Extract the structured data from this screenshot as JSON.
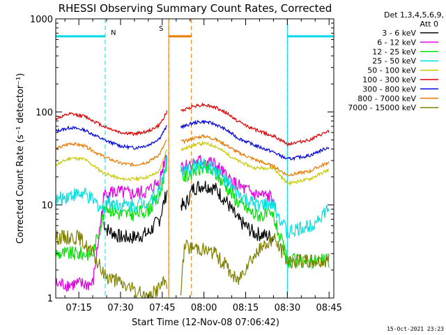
{
  "chart_data": {
    "type": "line",
    "title": "RHESSI Observing Summary Count Rates, Corrected",
    "xlabel": "Start Time (12-Nov-08 07:06:42)",
    "ylabel": "Corrected Count Rate (s⁻¹ detector⁻¹)",
    "yscale": "log",
    "ylim": [
      1,
      1000
    ],
    "xlim_minutes_after_start": [
      0,
      100
    ],
    "x_tick_labels": [
      "07:15",
      "07:30",
      "07:45",
      "08:00",
      "08:15",
      "08:30",
      "08:45"
    ],
    "y_tick_labels": [
      "1",
      "10",
      "100",
      "1000"
    ],
    "legend_header_1": "Det 1,3,4,5,6,9,",
    "legend_header_2": "Att 0",
    "legend_position": "right",
    "grid": false,
    "timestamp": "15-Oct-2021 23:23",
    "annotations": {
      "night_label": "N",
      "saa_label": "S"
    },
    "intervals": {
      "night": [
        [
          "07:06:42",
          "07:24:30"
        ],
        [
          "08:30:00",
          "08:46:30"
        ]
      ],
      "saa": [
        [
          "07:47:20",
          "07:55:30"
        ]
      ],
      "gaps": [
        [
          "07:46:50",
          "07:51:40"
        ]
      ]
    },
    "series": [
      {
        "name": "3 - 6 keV",
        "color": "#000000",
        "points": [
          [
            "07:24:00",
            6.5
          ],
          [
            "07:25:00",
            5.5
          ],
          [
            "07:30:00",
            4.5
          ],
          [
            "07:35:00",
            4.5
          ],
          [
            "07:40:00",
            5.0
          ],
          [
            "07:44:00",
            7.0
          ],
          [
            "07:46:40",
            14.0
          ],
          [
            "07:53:00",
            9.5
          ],
          [
            "07:56:00",
            15.0
          ],
          [
            "08:00:00",
            16.5
          ],
          [
            "08:04:00",
            15.0
          ],
          [
            "08:08:00",
            11.0
          ],
          [
            "08:12:00",
            7.0
          ],
          [
            "08:18:00",
            5.0
          ],
          [
            "08:25:00",
            4.5
          ]
        ]
      },
      {
        "name": "6 - 12 keV",
        "color": "#e000e0",
        "points": [
          [
            "07:06:42",
            1.4
          ],
          [
            "07:20:00",
            1.4
          ],
          [
            "07:24:00",
            12.0
          ],
          [
            "07:25:00",
            14.0
          ],
          [
            "07:30:00",
            13.5
          ],
          [
            "07:35:00",
            13.0
          ],
          [
            "07:40:00",
            14.0
          ],
          [
            "07:44:00",
            18.0
          ],
          [
            "07:46:40",
            38.0
          ],
          [
            "07:53:00",
            26.0
          ],
          [
            "07:56:00",
            28.0
          ],
          [
            "08:00:00",
            30.0
          ],
          [
            "08:04:00",
            27.0
          ],
          [
            "08:08:00",
            20.0
          ],
          [
            "08:12:00",
            16.0
          ],
          [
            "08:18:00",
            13.0
          ],
          [
            "08:25:00",
            12.0
          ]
        ]
      },
      {
        "name": "12 - 25 keV",
        "color": "#00e000",
        "points": [
          [
            "07:06:42",
            3.0
          ],
          [
            "07:20:00",
            3.0
          ],
          [
            "07:24:00",
            8.0
          ],
          [
            "07:25:00",
            9.5
          ],
          [
            "07:30:00",
            8.0
          ],
          [
            "07:35:00",
            8.0
          ],
          [
            "07:40:00",
            9.0
          ],
          [
            "07:44:00",
            12.0
          ],
          [
            "07:46:40",
            30.0
          ],
          [
            "07:53:00",
            20.0
          ],
          [
            "07:56:00",
            23.0
          ],
          [
            "08:00:00",
            25.0
          ],
          [
            "08:04:00",
            22.0
          ],
          [
            "08:08:00",
            16.0
          ],
          [
            "08:12:00",
            11.0
          ],
          [
            "08:18:00",
            8.0
          ],
          [
            "08:25:00",
            7.5
          ],
          [
            "08:30:00",
            2.5
          ],
          [
            "08:45:00",
            2.5
          ]
        ]
      },
      {
        "name": "25 - 50 keV",
        "color": "#00e0e0",
        "points": [
          [
            "07:06:42",
            11.0
          ],
          [
            "07:12:00",
            13.0
          ],
          [
            "07:17:00",
            13.0
          ],
          [
            "07:24:00",
            9.0
          ],
          [
            "07:25:00",
            11.0
          ],
          [
            "07:30:00",
            10.0
          ],
          [
            "07:35:00",
            10.0
          ],
          [
            "07:40:00",
            11.0
          ],
          [
            "07:44:00",
            14.0
          ],
          [
            "07:46:40",
            32.0
          ],
          [
            "07:53:00",
            22.0
          ],
          [
            "07:56:00",
            26.0
          ],
          [
            "08:00:00",
            27.0
          ],
          [
            "08:04:00",
            24.0
          ],
          [
            "08:08:00",
            18.0
          ],
          [
            "08:12:00",
            13.0
          ],
          [
            "08:18:00",
            10.0
          ],
          [
            "08:25:00",
            10.0
          ],
          [
            "08:30:00",
            5.0
          ],
          [
            "08:38:00",
            6.0
          ],
          [
            "08:45:00",
            9.0
          ]
        ]
      },
      {
        "name": "50 - 100 keV",
        "color": "#c8c800",
        "points": [
          [
            "07:06:42",
            27.0
          ],
          [
            "07:12:00",
            32.0
          ],
          [
            "07:17:00",
            31.0
          ],
          [
            "07:24:00",
            22.0
          ],
          [
            "07:30:00",
            19.0
          ],
          [
            "07:35:00",
            19.0
          ],
          [
            "07:40:00",
            20.0
          ],
          [
            "07:44:00",
            23.0
          ],
          [
            "07:46:40",
            40.0
          ],
          [
            "07:53:00",
            40.0
          ],
          [
            "07:56:00",
            44.0
          ],
          [
            "08:00:00",
            46.0
          ],
          [
            "08:04:00",
            43.0
          ],
          [
            "08:08:00",
            36.0
          ],
          [
            "08:12:00",
            30.0
          ],
          [
            "08:18:00",
            25.0
          ],
          [
            "08:25:00",
            25.0
          ],
          [
            "08:30:00",
            17.0
          ],
          [
            "08:38:00",
            19.0
          ],
          [
            "08:45:00",
            24.0
          ]
        ]
      },
      {
        "name": "100 - 300 keV",
        "color": "#e00000",
        "points": [
          [
            "07:06:42",
            85.0
          ],
          [
            "07:12:00",
            95.0
          ],
          [
            "07:17:00",
            90.0
          ],
          [
            "07:24:00",
            70.0
          ],
          [
            "07:30:00",
            60.0
          ],
          [
            "07:35:00",
            58.0
          ],
          [
            "07:40:00",
            62.0
          ],
          [
            "07:44:00",
            72.0
          ],
          [
            "07:46:40",
            100.0
          ],
          [
            "07:53:00",
            105.0
          ],
          [
            "07:56:00",
            115.0
          ],
          [
            "08:00:00",
            120.0
          ],
          [
            "08:04:00",
            112.0
          ],
          [
            "08:08:00",
            98.0
          ],
          [
            "08:12:00",
            80.0
          ],
          [
            "08:18:00",
            65.0
          ],
          [
            "08:25:00",
            55.0
          ],
          [
            "08:30:00",
            45.0
          ],
          [
            "08:38:00",
            50.0
          ],
          [
            "08:45:00",
            62.0
          ]
        ]
      },
      {
        "name": "300 - 800 keV",
        "color": "#0000e0",
        "points": [
          [
            "07:06:42",
            62.0
          ],
          [
            "07:12:00",
            68.0
          ],
          [
            "07:17:00",
            64.0
          ],
          [
            "07:24:00",
            50.0
          ],
          [
            "07:30:00",
            43.0
          ],
          [
            "07:35:00",
            41.0
          ],
          [
            "07:40:00",
            44.0
          ],
          [
            "07:44:00",
            52.0
          ],
          [
            "07:46:40",
            70.0
          ],
          [
            "07:53:00",
            70.0
          ],
          [
            "07:56:00",
            76.0
          ],
          [
            "08:00:00",
            79.0
          ],
          [
            "08:04:00",
            74.0
          ],
          [
            "08:08:00",
            64.0
          ],
          [
            "08:12:00",
            53.0
          ],
          [
            "08:18:00",
            44.0
          ],
          [
            "08:25:00",
            37.0
          ],
          [
            "08:30:00",
            31.0
          ],
          [
            "08:38:00",
            34.0
          ],
          [
            "08:45:00",
            42.0
          ]
        ]
      },
      {
        "name": "800 - 7000 keV",
        "color": "#e87800",
        "points": [
          [
            "07:06:42",
            40.0
          ],
          [
            "07:12:00",
            46.0
          ],
          [
            "07:17:00",
            43.0
          ],
          [
            "07:24:00",
            33.0
          ],
          [
            "07:30:00",
            28.0
          ],
          [
            "07:35:00",
            27.0
          ],
          [
            "07:40:00",
            29.0
          ],
          [
            "07:44:00",
            35.0
          ],
          [
            "07:46:40",
            50.0
          ],
          [
            "07:53:00",
            48.0
          ],
          [
            "07:56:00",
            52.0
          ],
          [
            "08:00:00",
            55.0
          ],
          [
            "08:04:00",
            51.0
          ],
          [
            "08:08:00",
            44.0
          ],
          [
            "08:12:00",
            37.0
          ],
          [
            "08:18:00",
            31.0
          ],
          [
            "08:25:00",
            26.0
          ],
          [
            "08:30:00",
            21.0
          ],
          [
            "08:38:00",
            23.0
          ],
          [
            "08:45:00",
            29.0
          ]
        ]
      },
      {
        "name": "7000 - 15000 keV",
        "color": "#808000",
        "points": [
          [
            "07:06:42",
            4.5
          ],
          [
            "07:15:00",
            4.5
          ],
          [
            "07:20:00",
            3.0
          ],
          [
            "07:24:00",
            1.8
          ],
          [
            "07:40:00",
            1.0
          ],
          [
            "07:46:00",
            1.5
          ],
          [
            "07:51:40",
            1.2
          ],
          [
            "07:53:00",
            3.5
          ],
          [
            "07:58:00",
            3.5
          ],
          [
            "08:04:00",
            3.0
          ],
          [
            "08:08:00",
            2.2
          ],
          [
            "08:12:00",
            1.5
          ],
          [
            "08:16:00",
            2.5
          ],
          [
            "08:25:00",
            4.5
          ],
          [
            "08:30:00",
            2.5
          ],
          [
            "08:37:00",
            2.5
          ],
          [
            "08:45:00",
            2.5
          ]
        ]
      }
    ]
  }
}
